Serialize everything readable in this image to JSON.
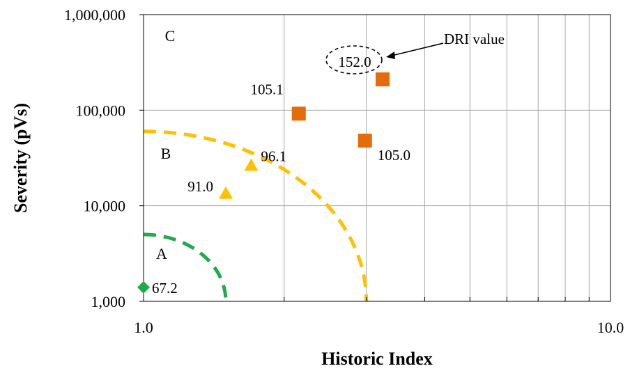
{
  "chart_data": {
    "type": "scatter",
    "title": "",
    "xlabel": "Historic Index",
    "ylabel": "Severity (pVs)",
    "xscale": "log",
    "yscale": "log",
    "xlim": [
      1.0,
      10.0
    ],
    "ylim": [
      1000,
      1000000
    ],
    "x_tick_labels": [
      {
        "value": 1.0,
        "label": "1.0"
      },
      {
        "value": 10.0,
        "label": "10.0"
      }
    ],
    "y_tick_labels": [
      {
        "value": 1000,
        "label": "1,000"
      },
      {
        "value": 10000,
        "label": "10,000"
      },
      {
        "value": 100000,
        "label": "100,000"
      },
      {
        "value": 1000000,
        "label": "1,000,000"
      }
    ],
    "grid": true,
    "colors": {
      "region_a": "#1faa4b",
      "region_b": "#ffc000",
      "region_c": "#e46c0a",
      "grid": "#a6a6a6",
      "axis": "#000000"
    },
    "series": [
      {
        "marker": "diamond",
        "color": "#1faa4b",
        "points": [
          {
            "x": 1.0,
            "y": 1400,
            "label": "67.2"
          }
        ]
      },
      {
        "marker": "triangle",
        "color": "#ffc000",
        "points": [
          {
            "x": 1.5,
            "y": 13500,
            "label": "91.0"
          },
          {
            "x": 1.7,
            "y": 26500,
            "label": "96.1"
          }
        ]
      },
      {
        "marker": "square",
        "color": "#e46c0a",
        "points": [
          {
            "x": 2.15,
            "y": 92000,
            "label": "105.1"
          },
          {
            "x": 2.98,
            "y": 48000,
            "label": "105.0"
          },
          {
            "x": 3.25,
            "y": 210000,
            "label": "152.0"
          }
        ]
      }
    ],
    "boundaries": [
      {
        "name": "A",
        "color": "#1faa4b",
        "x_end": 1.5,
        "y_start": 5000
      },
      {
        "name": "B",
        "color": "#ffc000",
        "x_end": 3.0,
        "y_start": 60000
      }
    ],
    "region_labels": [
      "A",
      "B",
      "C"
    ],
    "annotations": {
      "callout_text": "DRI value",
      "callout_target": "152.0"
    }
  }
}
